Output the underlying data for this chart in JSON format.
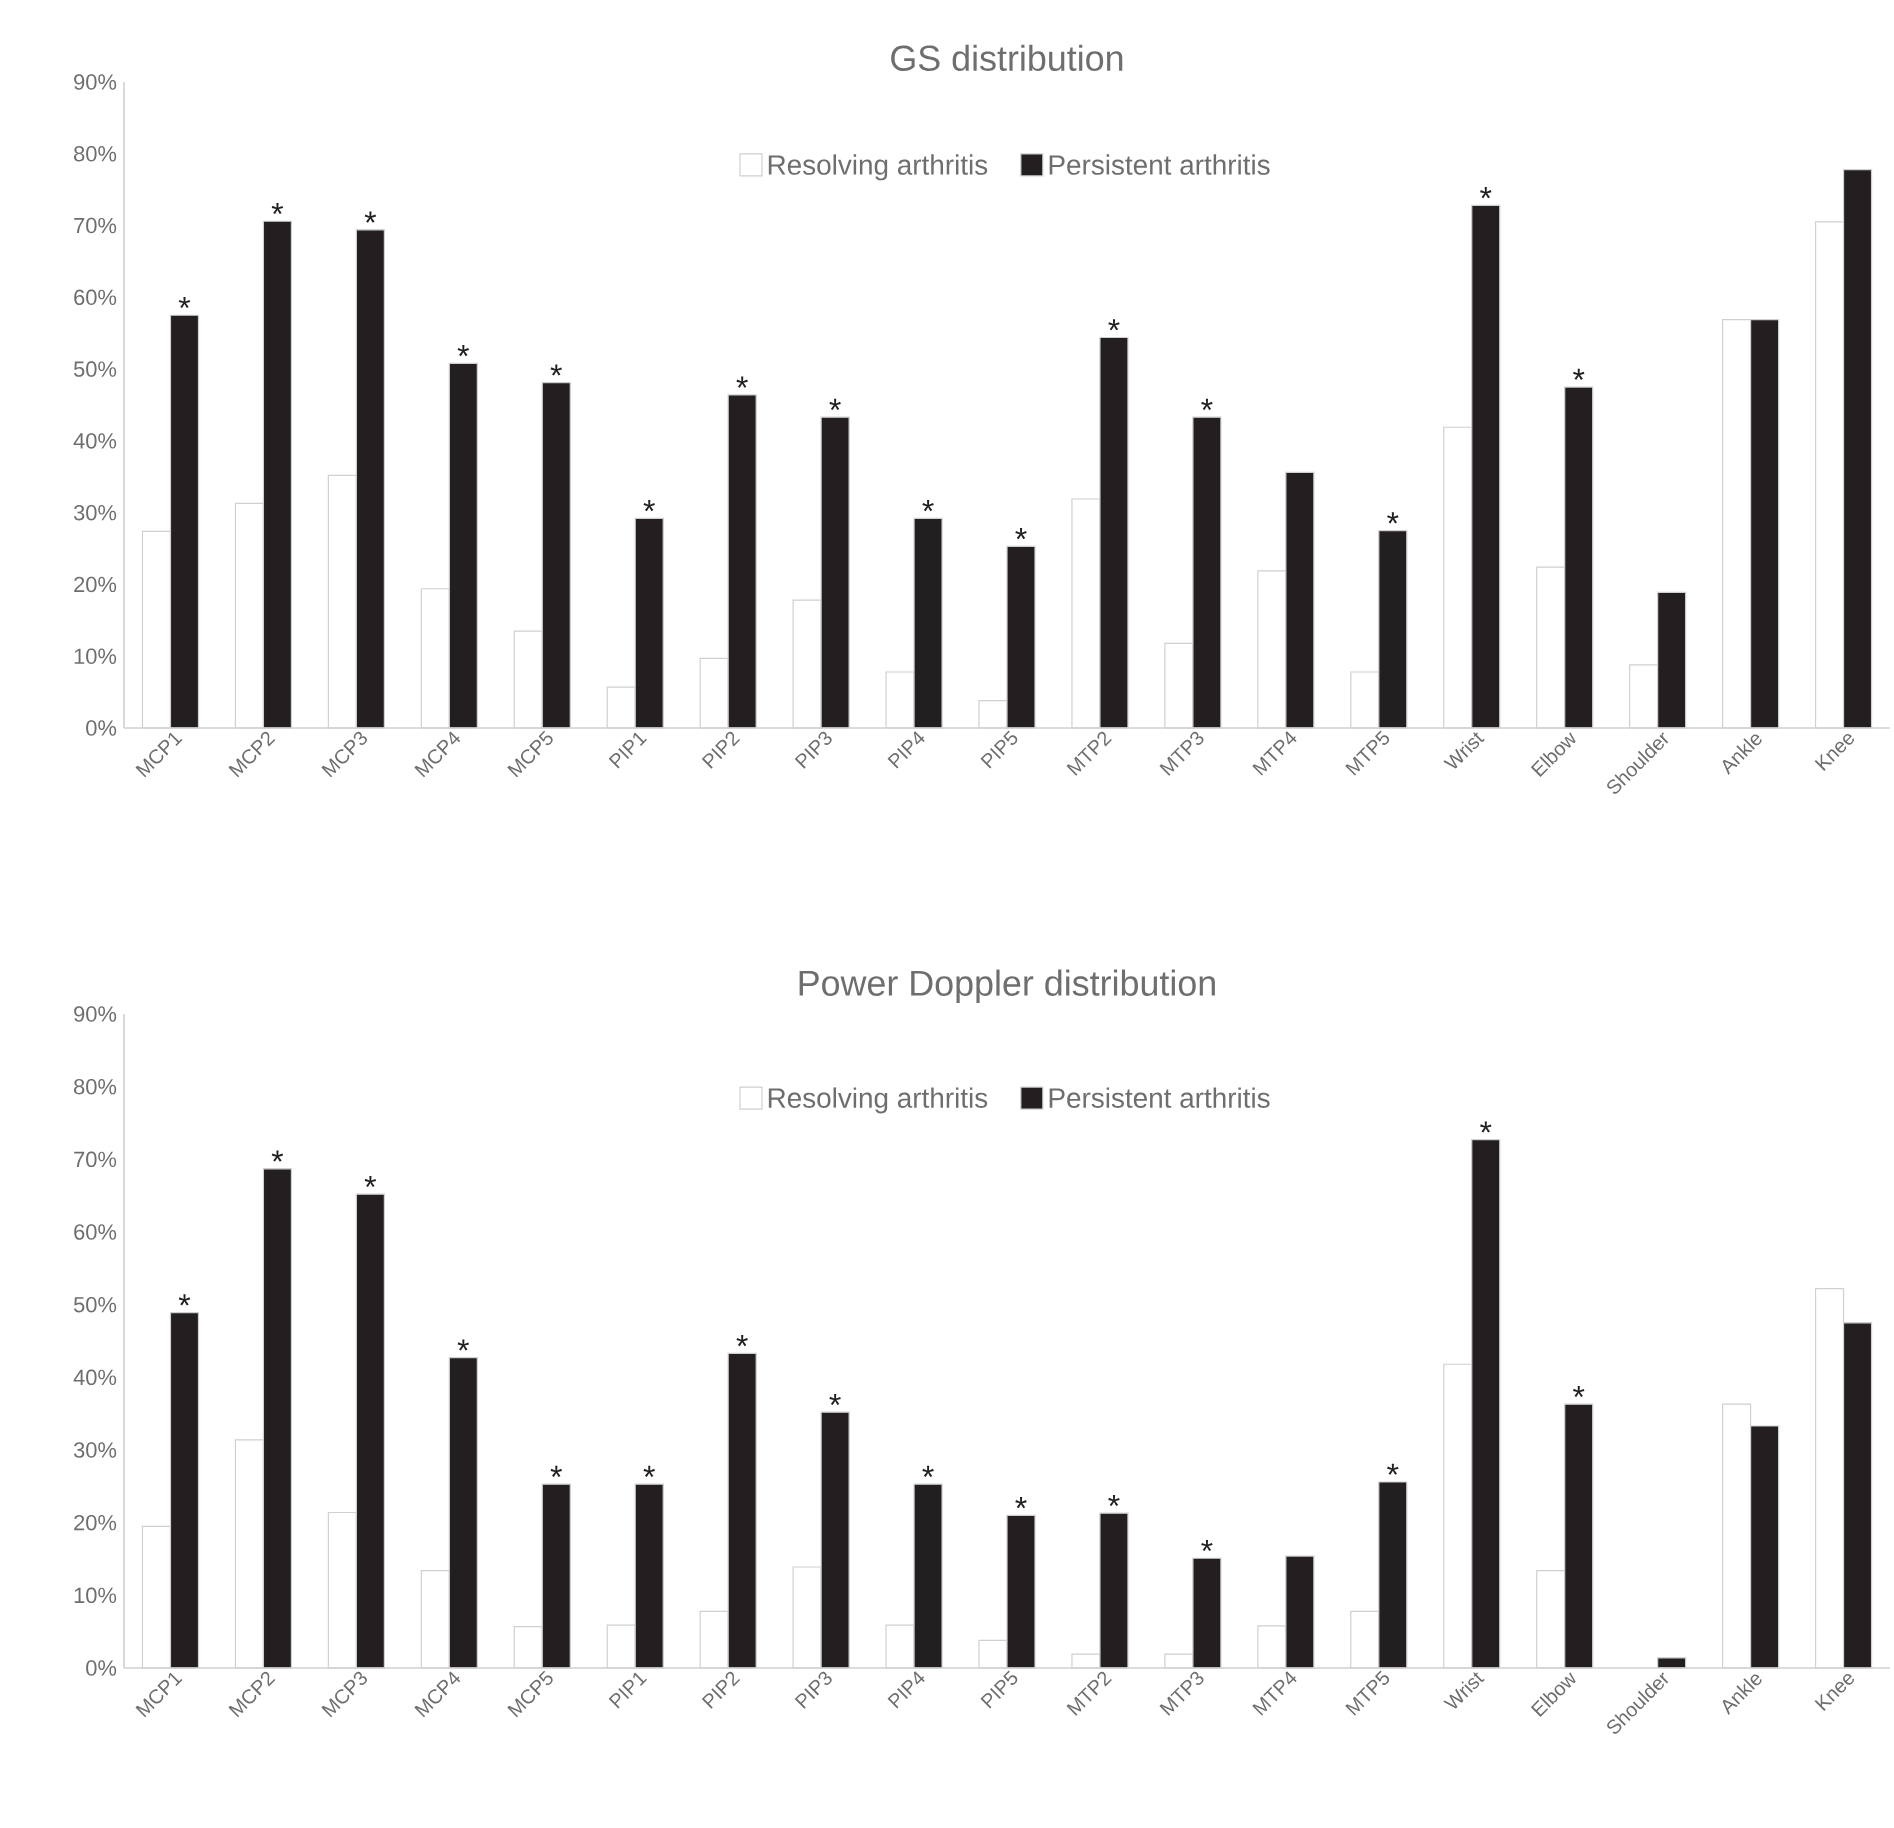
{
  "chart_data": [
    {
      "type": "bar",
      "title": "GS distribution",
      "categories": [
        "MCP1",
        "MCP2",
        "MCP3",
        "MCP4",
        "MCP5",
        "PIP1",
        "PIP2",
        "PIP3",
        "PIP4",
        "PIP5",
        "MTP2",
        "MTP3",
        "MTP4",
        "MTP5",
        "Wrist",
        "Elbow",
        "Shoulder",
        "Ankle",
        "Knee"
      ],
      "series": [
        {
          "name": "Resolving arthritis",
          "color": "#ffffff",
          "values": [
            27.4,
            31.3,
            35.2,
            19.4,
            13.5,
            5.7,
            9.7,
            17.8,
            7.8,
            3.8,
            31.9,
            11.8,
            21.9,
            7.8,
            41.9,
            22.4,
            8.8,
            56.9,
            70.5
          ]
        },
        {
          "name": "Persistent arthritis",
          "color": "#231f20",
          "values": [
            57.5,
            70.6,
            69.4,
            50.8,
            48.1,
            29.2,
            46.4,
            43.3,
            29.2,
            25.3,
            54.4,
            43.3,
            35.6,
            27.5,
            72.8,
            47.5,
            18.9,
            56.9,
            77.8
          ]
        }
      ],
      "ylim": [
        0,
        90
      ],
      "yticks": [
        {
          "value": 0,
          "label": "0%"
        },
        {
          "value": 10,
          "label": "10%"
        },
        {
          "value": 20,
          "label": "20%"
        },
        {
          "value": 30,
          "label": "30%"
        },
        {
          "value": 40,
          "label": "40%"
        },
        {
          "value": 50,
          "label": "50%"
        },
        {
          "value": 60,
          "label": "60%"
        },
        {
          "value": 70,
          "label": "70%"
        },
        {
          "value": 80,
          "label": "80%"
        },
        {
          "value": 90,
          "label": "90%"
        }
      ],
      "legend": "top",
      "grid": false,
      "annotations": [
        {
          "text": "*",
          "x": "MCP1",
          "y": 57.5
        },
        {
          "text": "*",
          "x": "MCP2",
          "y": 70.6
        },
        {
          "text": "*",
          "x": "MCP3",
          "y": 69.4
        },
        {
          "text": "*",
          "x": "MCP4",
          "y": 50.8
        },
        {
          "text": "*",
          "x": "MCP5",
          "y": 48.1
        },
        {
          "text": "*",
          "x": "PIP1",
          "y": 29.2
        },
        {
          "text": "*",
          "x": "PIP2",
          "y": 46.4
        },
        {
          "text": "*",
          "x": "PIP3",
          "y": 43.3
        },
        {
          "text": "*",
          "x": "PIP4",
          "y": 29.2
        },
        {
          "text": "*",
          "x": "PIP5",
          "y": 25.3
        },
        {
          "text": "*",
          "x": "MTP2",
          "y": 54.4
        },
        {
          "text": "*",
          "x": "MTP3",
          "y": 43.3
        },
        {
          "text": "*",
          "x": "MTP5",
          "y": 27.5
        },
        {
          "text": "*",
          "x": "Wrist",
          "y": 72.8
        },
        {
          "text": "*",
          "x": "Elbow",
          "y": 47.5
        }
      ]
    },
    {
      "type": "bar",
      "title": "Power Doppler distribution",
      "categories": [
        "MCP1",
        "MCP2",
        "MCP3",
        "MCP4",
        "MCP5",
        "PIP1",
        "PIP2",
        "PIP3",
        "PIP4",
        "PIP5",
        "MTP2",
        "MTP3",
        "MTP4",
        "MTP5",
        "Wrist",
        "Elbow",
        "Shoulder",
        "Ankle",
        "Knee"
      ],
      "series": [
        {
          "name": "Resolving arthritis",
          "color": "#ffffff",
          "values": [
            19.5,
            31.4,
            21.4,
            13.4,
            5.7,
            5.9,
            7.8,
            13.9,
            5.9,
            3.8,
            1.9,
            1.9,
            5.8,
            7.8,
            41.8,
            13.4,
            0,
            36.3,
            52.2
          ]
        },
        {
          "name": "Persistent arthritis",
          "color": "#231f20",
          "values": [
            48.9,
            68.7,
            65.2,
            42.7,
            25.3,
            25.3,
            43.3,
            35.2,
            25.3,
            21.0,
            21.3,
            15.1,
            15.4,
            25.6,
            72.7,
            36.3,
            1.4,
            33.3,
            47.5
          ]
        }
      ],
      "ylim": [
        0,
        90
      ],
      "yticks": [
        {
          "value": 0,
          "label": "0%"
        },
        {
          "value": 10,
          "label": "10%"
        },
        {
          "value": 20,
          "label": "20%"
        },
        {
          "value": 30,
          "label": "30%"
        },
        {
          "value": 40,
          "label": "40%"
        },
        {
          "value": 50,
          "label": "50%"
        },
        {
          "value": 60,
          "label": "60%"
        },
        {
          "value": 70,
          "label": "70%"
        },
        {
          "value": 80,
          "label": "80%"
        },
        {
          "value": 90,
          "label": "90%"
        }
      ],
      "legend": "top",
      "grid": false,
      "annotations": [
        {
          "text": "*",
          "x": "MCP1",
          "y": 48.9
        },
        {
          "text": "*",
          "x": "MCP2",
          "y": 68.7
        },
        {
          "text": "*",
          "x": "MCP3",
          "y": 65.2
        },
        {
          "text": "*",
          "x": "MCP4",
          "y": 42.7
        },
        {
          "text": "*",
          "x": "MCP5",
          "y": 25.3
        },
        {
          "text": "*",
          "x": "PIP1",
          "y": 25.3
        },
        {
          "text": "*",
          "x": "PIP2",
          "y": 43.3
        },
        {
          "text": "*",
          "x": "PIP3",
          "y": 35.2
        },
        {
          "text": "*",
          "x": "PIP4",
          "y": 25.3
        },
        {
          "text": "*",
          "x": "PIP5",
          "y": 21.0
        },
        {
          "text": "*",
          "x": "MTP2",
          "y": 21.3
        },
        {
          "text": "*",
          "x": "MTP3",
          "y": 15.1
        },
        {
          "text": "*",
          "x": "MTP5",
          "y": 25.6
        },
        {
          "text": "*",
          "x": "Wrist",
          "y": 72.7
        },
        {
          "text": "*",
          "x": "Elbow",
          "y": 36.3
        }
      ]
    }
  ]
}
